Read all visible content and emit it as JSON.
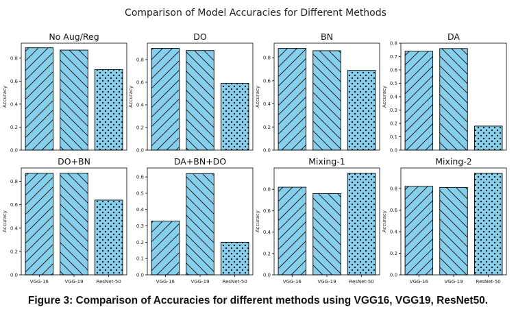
{
  "figure_title": "Comparison of Model Accuracies for Different Methods",
  "caption": "Figure 3: Comparison of Accuracies for different methods using VGG16, VGG19, ResNet50.",
  "colors": {
    "bar_fill": "#87ceeb",
    "edge": "#000000"
  },
  "chart_data": [
    {
      "type": "bar",
      "title": "No Aug/Reg",
      "ylabel": "Accuracy",
      "xlabel": "",
      "categories": [
        "VGG-16",
        "VGG-19",
        "ResNet-50"
      ],
      "values": [
        0.89,
        0.87,
        0.7
      ],
      "patterns": [
        "forward-hatch",
        "back-hatch",
        "dots"
      ],
      "ylim": [
        0,
        0.93
      ],
      "yticks": [
        "0.0",
        "0.2",
        "0.4",
        "0.6",
        "0.8"
      ],
      "ytick_values": [
        0,
        0.2,
        0.4,
        0.6,
        0.8
      ],
      "show_xticklabels": false
    },
    {
      "type": "bar",
      "title": "DO",
      "ylabel": "Accuracy",
      "xlabel": "",
      "categories": [
        "VGG-16",
        "VGG-19",
        "ResNet-50"
      ],
      "values": [
        0.9,
        0.88,
        0.59
      ],
      "patterns": [
        "forward-hatch",
        "back-hatch",
        "dots"
      ],
      "ylim": [
        0,
        0.945
      ],
      "yticks": [
        "0.0",
        "0.2",
        "0.4",
        "0.6",
        "0.8"
      ],
      "ytick_values": [
        0,
        0.2,
        0.4,
        0.6,
        0.8
      ],
      "show_xticklabels": false
    },
    {
      "type": "bar",
      "title": "BN",
      "ylabel": "Accuracy",
      "xlabel": "",
      "categories": [
        "VGG-16",
        "VGG-19",
        "ResNet-50"
      ],
      "values": [
        0.88,
        0.86,
        0.69
      ],
      "patterns": [
        "forward-hatch",
        "back-hatch",
        "dots"
      ],
      "ylim": [
        0,
        0.925
      ],
      "yticks": [
        "0.0",
        "0.2",
        "0.4",
        "0.6",
        "0.8"
      ],
      "ytick_values": [
        0,
        0.2,
        0.4,
        0.6,
        0.8
      ],
      "show_xticklabels": false
    },
    {
      "type": "bar",
      "title": "DA",
      "ylabel": "Accuracy",
      "xlabel": "",
      "categories": [
        "VGG-16",
        "VGG-19",
        "ResNet-50"
      ],
      "values": [
        0.74,
        0.76,
        0.18
      ],
      "patterns": [
        "forward-hatch",
        "back-hatch",
        "dots"
      ],
      "ylim": [
        0,
        0.8
      ],
      "yticks": [
        "0.0",
        "0.1",
        "0.2",
        "0.3",
        "0.4",
        "0.5",
        "0.6",
        "0.7",
        "0.8"
      ],
      "ytick_values": [
        0,
        0.1,
        0.2,
        0.3,
        0.4,
        0.5,
        0.6,
        0.7,
        0.8
      ],
      "show_xticklabels": false
    },
    {
      "type": "bar",
      "title": "DO+BN",
      "ylabel": "Accuracy",
      "xlabel": "",
      "categories": [
        "VGG-16",
        "VGG-19",
        "ResNet-50"
      ],
      "values": [
        0.87,
        0.87,
        0.64
      ],
      "patterns": [
        "forward-hatch",
        "back-hatch",
        "dots"
      ],
      "ylim": [
        0,
        0.915
      ],
      "yticks": [
        "0.0",
        "0.2",
        "0.4",
        "0.6",
        "0.8"
      ],
      "ytick_values": [
        0,
        0.2,
        0.4,
        0.6,
        0.8
      ],
      "show_xticklabels": true
    },
    {
      "type": "bar",
      "title": "DA+BN+DO",
      "ylabel": "",
      "xlabel": "",
      "categories": [
        "VGG-16",
        "VGG-19",
        "ResNet-50"
      ],
      "values": [
        0.33,
        0.62,
        0.2
      ],
      "patterns": [
        "forward-hatch",
        "back-hatch",
        "dots"
      ],
      "ylim": [
        0,
        0.655
      ],
      "yticks": [
        "0.0",
        "0.1",
        "0.2",
        "0.3",
        "0.4",
        "0.5",
        "0.6"
      ],
      "ytick_values": [
        0,
        0.1,
        0.2,
        0.3,
        0.4,
        0.5,
        0.6
      ],
      "show_xticklabels": true
    },
    {
      "type": "bar",
      "title": "Mixing-1",
      "ylabel": "Accuracy",
      "xlabel": "",
      "categories": [
        "VGG-16",
        "VGG-19",
        "ResNet-50"
      ],
      "values": [
        0.82,
        0.76,
        0.95
      ],
      "patterns": [
        "forward-hatch",
        "back-hatch",
        "dots"
      ],
      "ylim": [
        0,
        1.0
      ],
      "yticks": [
        "0.0",
        "0.2",
        "0.4",
        "0.6",
        "0.8"
      ],
      "ytick_values": [
        0,
        0.2,
        0.4,
        0.6,
        0.8
      ],
      "show_xticklabels": true
    },
    {
      "type": "bar",
      "title": "Mixing-2",
      "ylabel": "Accuracy",
      "xlabel": "",
      "categories": [
        "VGG-16",
        "VGG-19",
        "ResNet-50"
      ],
      "values": [
        0.82,
        0.81,
        0.94
      ],
      "patterns": [
        "forward-hatch",
        "back-hatch",
        "dots"
      ],
      "ylim": [
        0,
        0.99
      ],
      "yticks": [
        "0.0",
        "0.2",
        "0.4",
        "0.6",
        "0.8"
      ],
      "ytick_values": [
        0,
        0.2,
        0.4,
        0.6,
        0.8
      ],
      "show_xticklabels": true
    }
  ]
}
